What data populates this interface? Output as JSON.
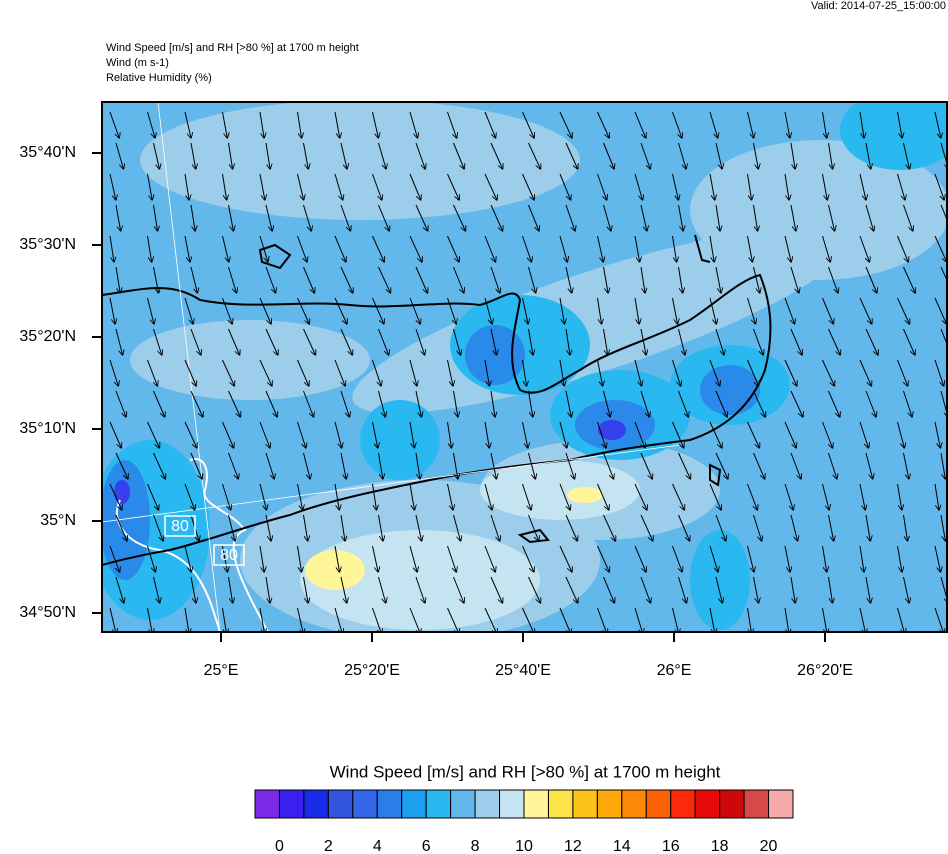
{
  "header": {
    "valid": "Valid: 2014-07-25_15:00:00",
    "title_lines": [
      "Wind Speed [m/s] and RH [>80 %] at 1700 m height",
      "Wind   (m s-1)",
      "Relative Humidity   (%)"
    ]
  },
  "map": {
    "lat_labels": [
      "34°50'N",
      "35°N",
      "35°10'N",
      "35°20'N",
      "35°30'N",
      "35°40'N"
    ],
    "lon_labels": [
      "25°E",
      "25°20'E",
      "25°40'E",
      "26°E",
      "26°20'E"
    ],
    "contour_labels": [
      "80",
      "80"
    ]
  },
  "colorbar": {
    "title": "Wind Speed [m/s] and RH [>80 %] at 1700 m height",
    "levels": [
      0,
      2,
      4,
      6,
      8,
      10,
      12,
      14,
      16,
      18,
      20
    ],
    "colors": [
      "#7b2be8",
      "#3b1ff0",
      "#1a2be8",
      "#3355dd",
      "#3366e8",
      "#2a7ee8",
      "#1ea0f0",
      "#2ab8f0",
      "#62b8ea",
      "#9ccdea",
      "#c4e4f2",
      "#fff599",
      "#fce44a",
      "#fcc41a",
      "#fca80a",
      "#fc8a06",
      "#fc6204",
      "#fa2a0a",
      "#e80a0a",
      "#cc0808",
      "#d84a4a",
      "#f8aaaa"
    ]
  }
}
